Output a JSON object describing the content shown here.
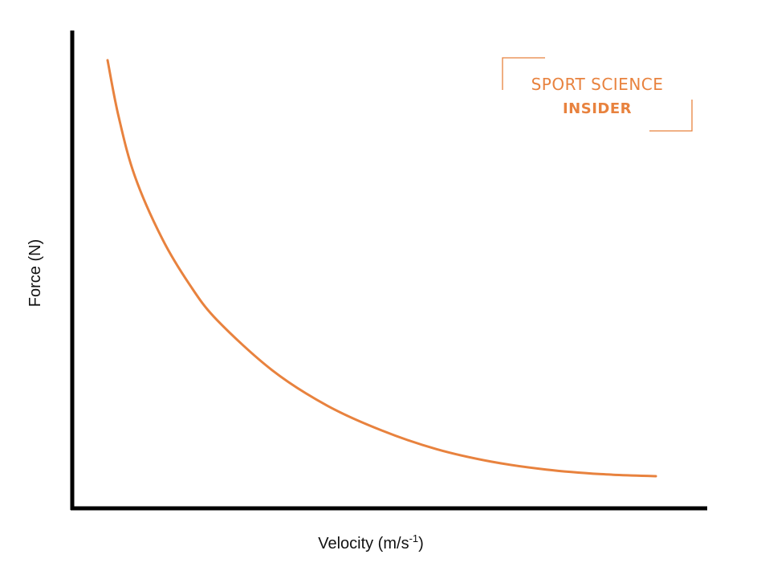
{
  "chart_data": {
    "type": "line",
    "title": "",
    "xlabel_main": "Velocity (m/s",
    "xlabel_sup": "-1",
    "xlabel_tail": ")",
    "ylabel": "Force (N)",
    "x_ticks_shown": false,
    "y_ticks_shown": false,
    "grid": false,
    "legend": "none",
    "series": [
      {
        "color": "#e8823e",
        "shape": "hyperbolic decay",
        "x": [
          0.0,
          0.02,
          0.05,
          0.1,
          0.15,
          0.2,
          0.3,
          0.4,
          0.5,
          0.6,
          0.7,
          0.8,
          0.9,
          1.0
        ],
        "y": [
          1.0,
          0.865,
          0.72,
          0.57,
          0.46,
          0.375,
          0.255,
          0.17,
          0.11,
          0.065,
          0.035,
          0.016,
          0.005,
          0.0
        ]
      }
    ]
  },
  "logo": {
    "line1": "SPORT SCIENCE",
    "line2": "INSIDER",
    "color": "#e8823e"
  }
}
